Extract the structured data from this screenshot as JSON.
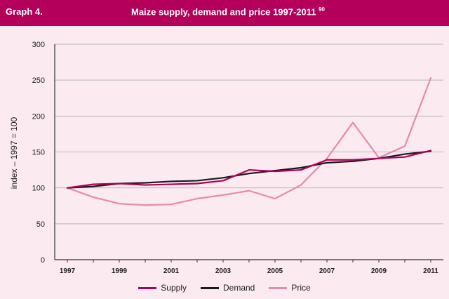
{
  "header": {
    "graph_label": "Graph 4.",
    "title": "Maize supply, demand and price  1997-2011",
    "title_superscript": "90"
  },
  "colors": {
    "header_bg": "#b4005a",
    "plot_bg": "#fbeaf0",
    "supply": "#b0005a",
    "demand": "#1a1a1a",
    "price": "#e58ab0"
  },
  "chart_data": {
    "type": "line",
    "title": "Maize supply, demand and price  1997-2011",
    "xlabel": "",
    "ylabel": "index – 1997 = 100",
    "ylim": [
      0,
      300
    ],
    "xlim": [
      1997,
      2011
    ],
    "yticks": [
      "0",
      "50",
      "100",
      "150",
      "200",
      "250",
      "300"
    ],
    "xticks": [
      "1997",
      "1999",
      "2001",
      "2003",
      "2005",
      "2007",
      "2009",
      "2011"
    ],
    "x": [
      1997,
      1998,
      1999,
      2000,
      2001,
      2002,
      2003,
      2004,
      2005,
      2006,
      2007,
      2008,
      2009,
      2010,
      2011
    ],
    "grid": "horizontal",
    "legend_position": "bottom",
    "series": [
      {
        "name": "Supply",
        "color": "#b0005a",
        "values": [
          100,
          105,
          106,
          104,
          105,
          106,
          110,
          125,
          123,
          125,
          139,
          139,
          141,
          143,
          152
        ]
      },
      {
        "name": "Demand",
        "color": "#1a1a1a",
        "values": [
          100,
          102,
          106,
          107,
          109,
          110,
          114,
          120,
          124,
          128,
          135,
          137,
          141,
          147,
          151
        ]
      },
      {
        "name": "Price",
        "color": "#e58ab0",
        "values": [
          100,
          87,
          78,
          76,
          77,
          85,
          90,
          96,
          85,
          104,
          141,
          191,
          142,
          158,
          253
        ]
      }
    ]
  }
}
